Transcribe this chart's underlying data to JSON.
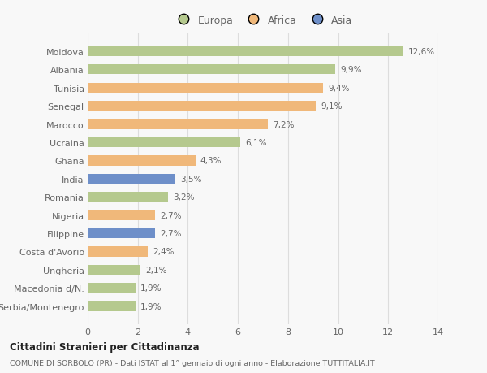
{
  "countries": [
    "Moldova",
    "Albania",
    "Tunisia",
    "Senegal",
    "Marocco",
    "Ucraina",
    "Ghana",
    "India",
    "Romania",
    "Nigeria",
    "Filippine",
    "Costa d'Avorio",
    "Ungheria",
    "Macedonia d/N.",
    "Serbia/Montenegro"
  ],
  "values": [
    12.6,
    9.9,
    9.4,
    9.1,
    7.2,
    6.1,
    4.3,
    3.5,
    3.2,
    2.7,
    2.7,
    2.4,
    2.1,
    1.9,
    1.9
  ],
  "continents": [
    "Europa",
    "Europa",
    "Africa",
    "Africa",
    "Africa",
    "Europa",
    "Africa",
    "Asia",
    "Europa",
    "Africa",
    "Asia",
    "Africa",
    "Europa",
    "Europa",
    "Europa"
  ],
  "colors": {
    "Europa": "#b5c98e",
    "Africa": "#f0b87a",
    "Asia": "#6e8fc9"
  },
  "legend_order": [
    "Europa",
    "Africa",
    "Asia"
  ],
  "xlim": [
    0,
    14
  ],
  "xticks": [
    0,
    2,
    4,
    6,
    8,
    10,
    12,
    14
  ],
  "title": "Cittadini Stranieri per Cittadinanza",
  "subtitle": "COMUNE DI SORBOLO (PR) - Dati ISTAT al 1° gennaio di ogni anno - Elaborazione TUTTITALIA.IT",
  "bg_color": "#f8f8f8",
  "bar_height": 0.55
}
